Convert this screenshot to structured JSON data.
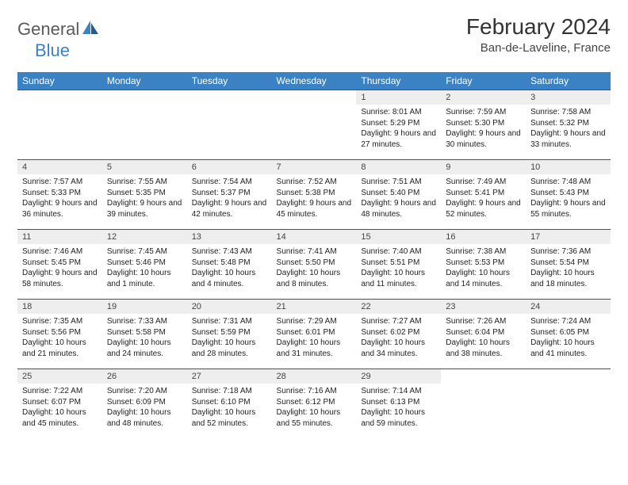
{
  "brand": {
    "general": "General",
    "blue": "Blue"
  },
  "title": "February 2024",
  "location": "Ban-de-Laveline, France",
  "colors": {
    "header_bg": "#3b82c4",
    "header_fg": "#ffffff",
    "daynum_bg": "#eeeeee",
    "row_border": "#2a5a8a",
    "logo_gray": "#5a5a5a",
    "logo_blue": "#3b82c4"
  },
  "day_headers": [
    "Sunday",
    "Monday",
    "Tuesday",
    "Wednesday",
    "Thursday",
    "Friday",
    "Saturday"
  ],
  "weeks": [
    [
      {
        "empty": true
      },
      {
        "empty": true
      },
      {
        "empty": true
      },
      {
        "empty": true
      },
      {
        "day": "1",
        "sunrise": "Sunrise: 8:01 AM",
        "sunset": "Sunset: 5:29 PM",
        "daylight": "Daylight: 9 hours and 27 minutes."
      },
      {
        "day": "2",
        "sunrise": "Sunrise: 7:59 AM",
        "sunset": "Sunset: 5:30 PM",
        "daylight": "Daylight: 9 hours and 30 minutes."
      },
      {
        "day": "3",
        "sunrise": "Sunrise: 7:58 AM",
        "sunset": "Sunset: 5:32 PM",
        "daylight": "Daylight: 9 hours and 33 minutes."
      }
    ],
    [
      {
        "day": "4",
        "sunrise": "Sunrise: 7:57 AM",
        "sunset": "Sunset: 5:33 PM",
        "daylight": "Daylight: 9 hours and 36 minutes."
      },
      {
        "day": "5",
        "sunrise": "Sunrise: 7:55 AM",
        "sunset": "Sunset: 5:35 PM",
        "daylight": "Daylight: 9 hours and 39 minutes."
      },
      {
        "day": "6",
        "sunrise": "Sunrise: 7:54 AM",
        "sunset": "Sunset: 5:37 PM",
        "daylight": "Daylight: 9 hours and 42 minutes."
      },
      {
        "day": "7",
        "sunrise": "Sunrise: 7:52 AM",
        "sunset": "Sunset: 5:38 PM",
        "daylight": "Daylight: 9 hours and 45 minutes."
      },
      {
        "day": "8",
        "sunrise": "Sunrise: 7:51 AM",
        "sunset": "Sunset: 5:40 PM",
        "daylight": "Daylight: 9 hours and 48 minutes."
      },
      {
        "day": "9",
        "sunrise": "Sunrise: 7:49 AM",
        "sunset": "Sunset: 5:41 PM",
        "daylight": "Daylight: 9 hours and 52 minutes."
      },
      {
        "day": "10",
        "sunrise": "Sunrise: 7:48 AM",
        "sunset": "Sunset: 5:43 PM",
        "daylight": "Daylight: 9 hours and 55 minutes."
      }
    ],
    [
      {
        "day": "11",
        "sunrise": "Sunrise: 7:46 AM",
        "sunset": "Sunset: 5:45 PM",
        "daylight": "Daylight: 9 hours and 58 minutes."
      },
      {
        "day": "12",
        "sunrise": "Sunrise: 7:45 AM",
        "sunset": "Sunset: 5:46 PM",
        "daylight": "Daylight: 10 hours and 1 minute."
      },
      {
        "day": "13",
        "sunrise": "Sunrise: 7:43 AM",
        "sunset": "Sunset: 5:48 PM",
        "daylight": "Daylight: 10 hours and 4 minutes."
      },
      {
        "day": "14",
        "sunrise": "Sunrise: 7:41 AM",
        "sunset": "Sunset: 5:50 PM",
        "daylight": "Daylight: 10 hours and 8 minutes."
      },
      {
        "day": "15",
        "sunrise": "Sunrise: 7:40 AM",
        "sunset": "Sunset: 5:51 PM",
        "daylight": "Daylight: 10 hours and 11 minutes."
      },
      {
        "day": "16",
        "sunrise": "Sunrise: 7:38 AM",
        "sunset": "Sunset: 5:53 PM",
        "daylight": "Daylight: 10 hours and 14 minutes."
      },
      {
        "day": "17",
        "sunrise": "Sunrise: 7:36 AM",
        "sunset": "Sunset: 5:54 PM",
        "daylight": "Daylight: 10 hours and 18 minutes."
      }
    ],
    [
      {
        "day": "18",
        "sunrise": "Sunrise: 7:35 AM",
        "sunset": "Sunset: 5:56 PM",
        "daylight": "Daylight: 10 hours and 21 minutes."
      },
      {
        "day": "19",
        "sunrise": "Sunrise: 7:33 AM",
        "sunset": "Sunset: 5:58 PM",
        "daylight": "Daylight: 10 hours and 24 minutes."
      },
      {
        "day": "20",
        "sunrise": "Sunrise: 7:31 AM",
        "sunset": "Sunset: 5:59 PM",
        "daylight": "Daylight: 10 hours and 28 minutes."
      },
      {
        "day": "21",
        "sunrise": "Sunrise: 7:29 AM",
        "sunset": "Sunset: 6:01 PM",
        "daylight": "Daylight: 10 hours and 31 minutes."
      },
      {
        "day": "22",
        "sunrise": "Sunrise: 7:27 AM",
        "sunset": "Sunset: 6:02 PM",
        "daylight": "Daylight: 10 hours and 34 minutes."
      },
      {
        "day": "23",
        "sunrise": "Sunrise: 7:26 AM",
        "sunset": "Sunset: 6:04 PM",
        "daylight": "Daylight: 10 hours and 38 minutes."
      },
      {
        "day": "24",
        "sunrise": "Sunrise: 7:24 AM",
        "sunset": "Sunset: 6:05 PM",
        "daylight": "Daylight: 10 hours and 41 minutes."
      }
    ],
    [
      {
        "day": "25",
        "sunrise": "Sunrise: 7:22 AM",
        "sunset": "Sunset: 6:07 PM",
        "daylight": "Daylight: 10 hours and 45 minutes."
      },
      {
        "day": "26",
        "sunrise": "Sunrise: 7:20 AM",
        "sunset": "Sunset: 6:09 PM",
        "daylight": "Daylight: 10 hours and 48 minutes."
      },
      {
        "day": "27",
        "sunrise": "Sunrise: 7:18 AM",
        "sunset": "Sunset: 6:10 PM",
        "daylight": "Daylight: 10 hours and 52 minutes."
      },
      {
        "day": "28",
        "sunrise": "Sunrise: 7:16 AM",
        "sunset": "Sunset: 6:12 PM",
        "daylight": "Daylight: 10 hours and 55 minutes."
      },
      {
        "day": "29",
        "sunrise": "Sunrise: 7:14 AM",
        "sunset": "Sunset: 6:13 PM",
        "daylight": "Daylight: 10 hours and 59 minutes."
      },
      {
        "empty": true
      },
      {
        "empty": true
      }
    ]
  ]
}
